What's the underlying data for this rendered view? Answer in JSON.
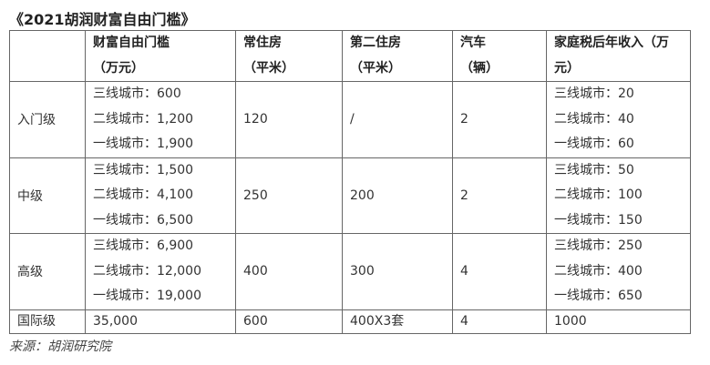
{
  "title": "《2021胡润财富自由门槛》",
  "headers": [
    {
      "line1": "",
      "line2": ""
    },
    {
      "line1": "财富自由门槛",
      "line2": "（万元）"
    },
    {
      "line1": "常住房",
      "line2": "（平米）"
    },
    {
      "line1": "第二住房",
      "line2": "（平米）"
    },
    {
      "line1": "汽车",
      "line2": "（辆）"
    },
    {
      "line1": "家庭税后年收入（万",
      "line2": "元）"
    }
  ],
  "rows": [
    {
      "level": "入门级",
      "threshold": [
        "三线城市：600",
        "二线城市：1,200",
        "一线城市：1,900"
      ],
      "home": "120",
      "second_home": "/",
      "cars": "2",
      "income": [
        "三线城市：20",
        "二线城市：40",
        "一线城市：60"
      ]
    },
    {
      "level": "中级",
      "threshold": [
        "三线城市：1,500",
        "二线城市：4,100",
        "一线城市：6,500"
      ],
      "home": "250",
      "second_home": "200",
      "cars": "2",
      "income": [
        "三线城市：50",
        "二线城市：100",
        "一线城市：150"
      ]
    },
    {
      "level": "高级",
      "threshold": [
        "三线城市：6,900",
        "二线城市：12,000",
        "一线城市：19,000"
      ],
      "home": "400",
      "second_home": "300",
      "cars": "4",
      "income": [
        "三线城市：250",
        "二线城市：400",
        "一线城市：650"
      ]
    }
  ],
  "intl": {
    "level": "国际级",
    "threshold": "35,000",
    "home": "600",
    "second_home": "400X3套",
    "cars": "4",
    "income": "1000"
  },
  "source": "来源：胡润研究院"
}
